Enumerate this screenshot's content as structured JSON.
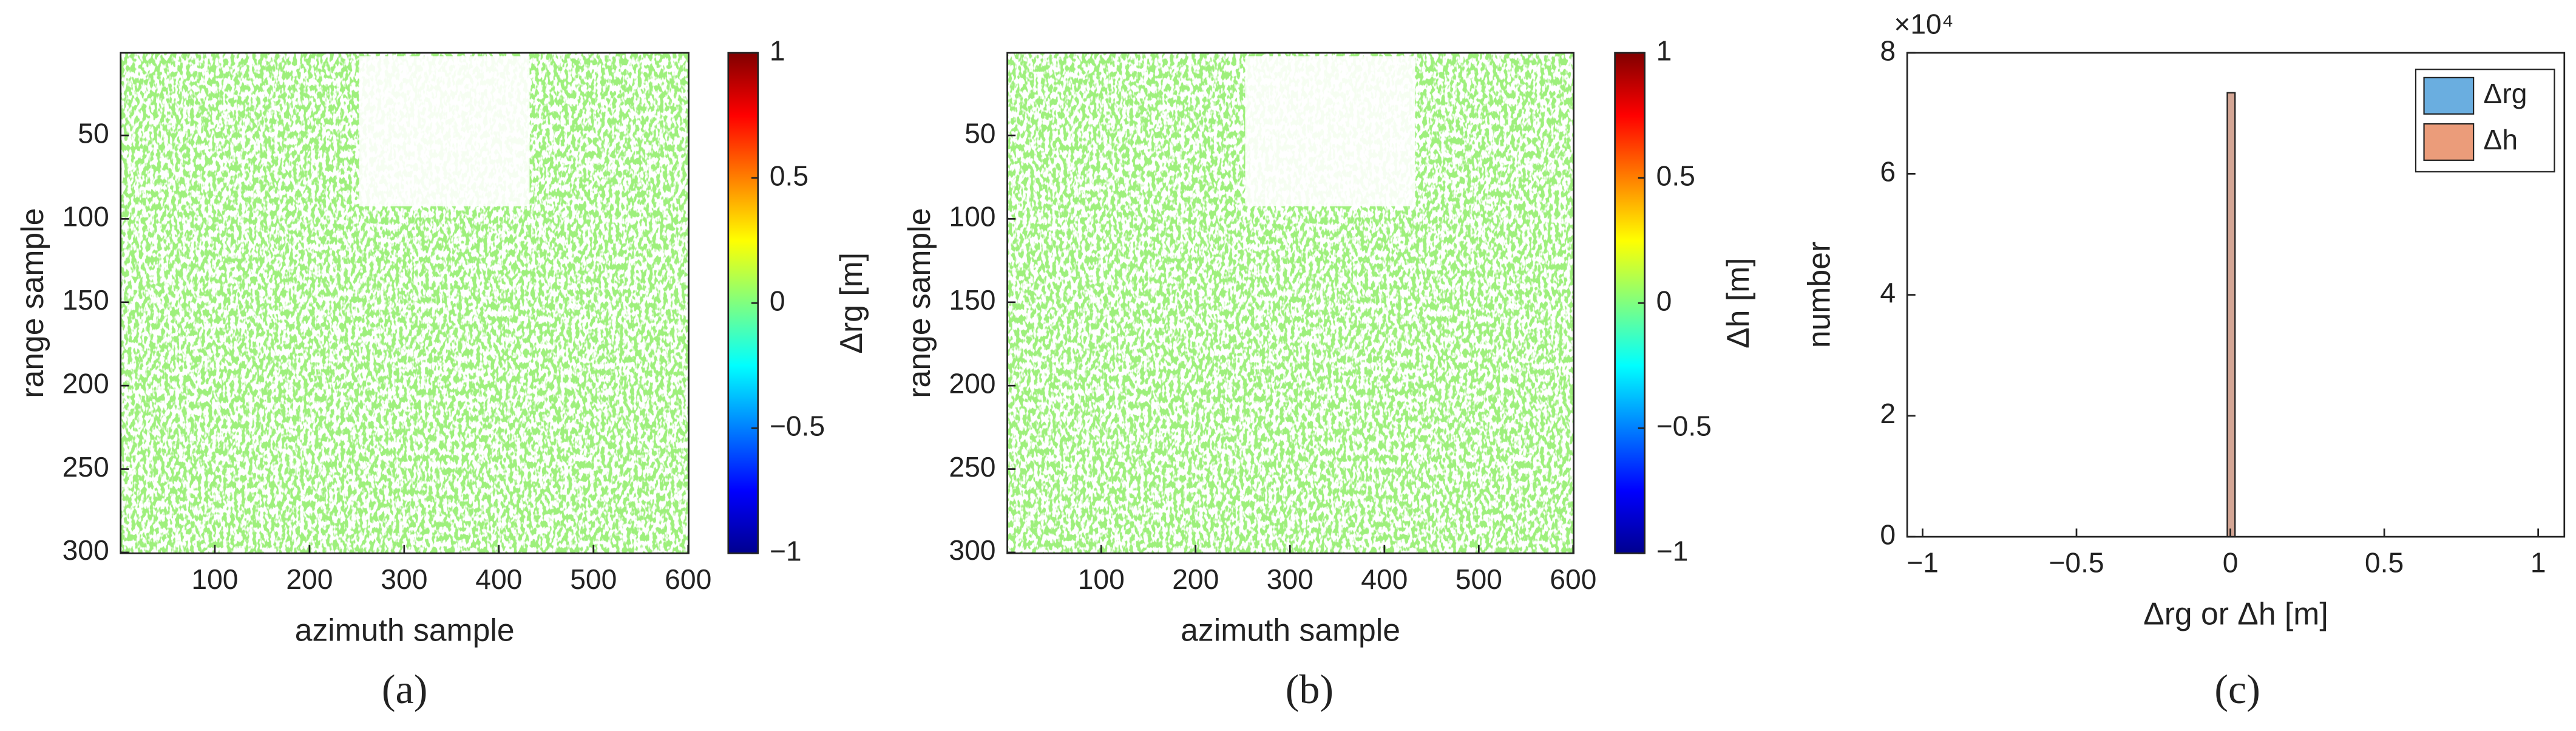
{
  "chart_data": [
    {
      "type": "image",
      "caption": "(a)",
      "xlabel": "azimuth sample",
      "ylabel": "range sample",
      "color": "#9ef07c",
      "xlim": [
        0.5,
        600.5
      ],
      "xticks": [
        100,
        200,
        300,
        400,
        500,
        600
      ],
      "ylim": [
        0.5,
        300.5
      ],
      "yticks": [
        50,
        100,
        150,
        200,
        250,
        300
      ],
      "y_reversed": true,
      "colorbar": {
        "label": "Δrg [m]",
        "colormap": "jet",
        "lim": [
          -1,
          1
        ],
        "ticks": [
          {
            "value": -1,
            "label": "−1"
          },
          {
            "value": -0.5,
            "label": "−0.5"
          },
          0,
          0.5,
          1
        ]
      }
    },
    {
      "type": "image",
      "caption": "(b)",
      "xlabel": "azimuth sample",
      "ylabel": "range sample",
      "color": "#9ef07c",
      "xlim": [
        0.5,
        600.5
      ],
      "xticks": [
        100,
        200,
        300,
        400,
        500,
        600
      ],
      "ylim": [
        0.5,
        300.5
      ],
      "yticks": [
        50,
        100,
        150,
        200,
        250,
        300
      ],
      "y_reversed": true,
      "colorbar": {
        "label": "Δh [m]",
        "colormap": "jet",
        "lim": [
          -1,
          1
        ],
        "ticks": [
          {
            "value": -1,
            "label": "−1"
          },
          {
            "value": -0.5,
            "label": "−0.5"
          },
          0,
          0.5,
          1
        ]
      }
    },
    {
      "type": "histogram",
      "caption": "(c)",
      "xlabel": "Δrg or Δh [m]",
      "ylabel": "number",
      "y_exponent": "×10⁴",
      "xlim": [
        -1.05,
        1.085
      ],
      "xticks": [
        {
          "value": -1,
          "label": "−1"
        },
        {
          "value": -0.5,
          "label": "−0.5"
        },
        0,
        0.5,
        1
      ],
      "ylim": [
        0,
        80000
      ],
      "yticks": [
        0,
        {
          "value": 20000,
          "label": "2"
        },
        {
          "value": 40000,
          "label": "4"
        },
        {
          "value": 60000,
          "label": "6"
        },
        {
          "value": 80000,
          "label": "8"
        }
      ],
      "bins": [
        -0.01,
        0.015
      ],
      "legend": "upper right",
      "series": [
        {
          "name": "Δrg",
          "color": "#6aaee0",
          "counts": [
            73400
          ]
        },
        {
          "name": "Δh",
          "color": "#eb9c7a",
          "counts": [
            73400
          ]
        }
      ]
    }
  ]
}
